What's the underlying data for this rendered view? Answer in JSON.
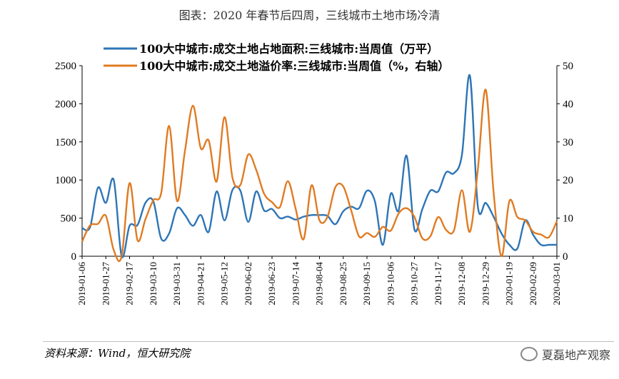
{
  "title": "图表：2020 年春节后四周，三线城市土地市场冷清",
  "source": "资料来源：Wind，恒大研究院",
  "watermark": "夏磊地产观察",
  "colors": {
    "series1": "#2e75b6",
    "series2": "#e07b22",
    "axis": "#000000"
  },
  "chart_data": {
    "type": "line",
    "legend_position": "top",
    "grid": false,
    "x_tick_labels": [
      "2019-01-06",
      "2019-01-27",
      "2019-02-17",
      "2019-03-10",
      "2019-03-31",
      "2019-04-21",
      "2019-05-12",
      "2019-06-02",
      "2019-06-23",
      "2019-07-14",
      "2019-08-04",
      "2019-08-25",
      "2019-09-15",
      "2019-10-06",
      "2019-10-27",
      "2019-11-17",
      "2019-12-08",
      "2019-12-29",
      "2020-01-19",
      "2020-02-09",
      "2020-03-01"
    ],
    "x": [
      "2019-01-06",
      "2019-01-13",
      "2019-01-20",
      "2019-01-27",
      "2019-02-03",
      "2019-02-10",
      "2019-02-17",
      "2019-02-24",
      "2019-03-03",
      "2019-03-10",
      "2019-03-17",
      "2019-03-24",
      "2019-03-31",
      "2019-04-07",
      "2019-04-14",
      "2019-04-21",
      "2019-04-28",
      "2019-05-05",
      "2019-05-12",
      "2019-05-19",
      "2019-05-26",
      "2019-06-02",
      "2019-06-09",
      "2019-06-16",
      "2019-06-23",
      "2019-06-30",
      "2019-07-07",
      "2019-07-14",
      "2019-07-21",
      "2019-07-28",
      "2019-08-04",
      "2019-08-11",
      "2019-08-18",
      "2019-08-25",
      "2019-09-01",
      "2019-09-08",
      "2019-09-15",
      "2019-09-22",
      "2019-09-29",
      "2019-10-06",
      "2019-10-13",
      "2019-10-20",
      "2019-10-27",
      "2019-11-03",
      "2019-11-10",
      "2019-11-17",
      "2019-11-24",
      "2019-12-01",
      "2019-12-08",
      "2019-12-15",
      "2019-12-22",
      "2019-12-29",
      "2020-01-05",
      "2020-01-12",
      "2020-01-19",
      "2020-01-26",
      "2020-02-02",
      "2020-02-09",
      "2020-02-16",
      "2020-02-23",
      "2020-03-01"
    ],
    "y_left": {
      "min": 0,
      "max": 2500,
      "ticks": [
        0,
        500,
        1000,
        1500,
        2000,
        2500
      ]
    },
    "y_right": {
      "min": 0,
      "max": 50,
      "ticks": [
        0,
        10,
        20,
        30,
        40,
        50
      ]
    },
    "series": [
      {
        "name": "100大中城市:成交土地占地面积:三线城市:当周值（万平）",
        "axis": "left",
        "values": [
          370,
          380,
          900,
          700,
          1000,
          0,
          400,
          410,
          700,
          720,
          230,
          300,
          630,
          540,
          400,
          540,
          320,
          850,
          470,
          870,
          860,
          450,
          850,
          600,
          620,
          500,
          520,
          480,
          520,
          540,
          540,
          530,
          420,
          590,
          650,
          630,
          860,
          720,
          150,
          820,
          600,
          1320,
          350,
          620,
          860,
          850,
          1100,
          1090,
          1330,
          2370,
          660,
          700,
          520,
          300,
          150,
          100,
          470,
          280,
          150,
          150,
          150
        ]
      },
      {
        "name": "100大中城市:成交土地溢价率:三线城市:当周值（%，右轴）",
        "axis": "right",
        "values": [
          3.8,
          8.1,
          8.5,
          10.6,
          1.6,
          0,
          19.2,
          4.2,
          9.7,
          14.7,
          16.6,
          34.2,
          14.5,
          27.7,
          39.5,
          28.3,
          30.4,
          19.6,
          36.5,
          20.6,
          18.7,
          26.7,
          22.7,
          16.4,
          14.2,
          12.9,
          19.7,
          12.3,
          4.5,
          18.6,
          9.4,
          10.3,
          18.1,
          18.3,
          12.1,
          5.2,
          6.1,
          5.1,
          7.7,
          6.7,
          11.2,
          12.6,
          10.3,
          4.7,
          5.2,
          10.3,
          6.9,
          6.8,
          17.3,
          6.4,
          22.6,
          43.7,
          16.9,
          0,
          14.5,
          10.3,
          9.4,
          6.4,
          5.7,
          5.0,
          9.2
        ]
      }
    ]
  }
}
